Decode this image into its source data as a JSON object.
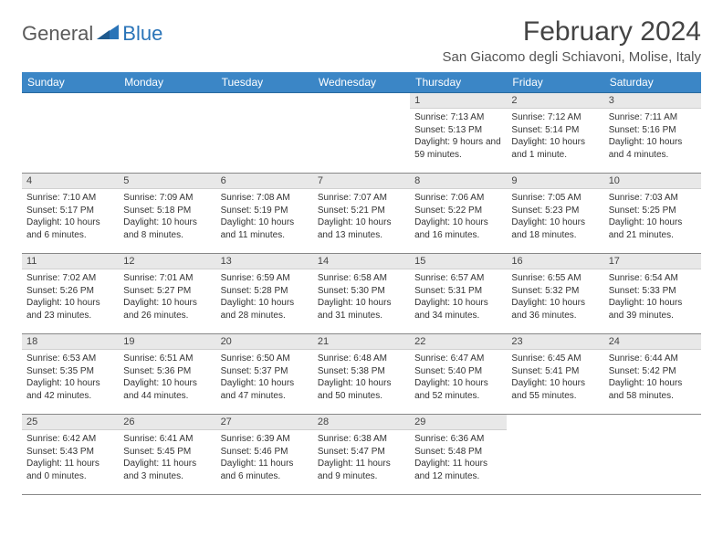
{
  "logo": {
    "general": "General",
    "blue": "Blue"
  },
  "title": "February 2024",
  "location": "San Giacomo degli Schiavoni, Molise, Italy",
  "colors": {
    "header_bg": "#3b86c6",
    "header_text": "#ffffff",
    "daynum_bg": "#e8e8e8",
    "border": "#888888",
    "logo_gray": "#5a5a5a",
    "logo_blue": "#2a74b8"
  },
  "weekdays": [
    "Sunday",
    "Monday",
    "Tuesday",
    "Wednesday",
    "Thursday",
    "Friday",
    "Saturday"
  ],
  "grid": [
    [
      null,
      null,
      null,
      null,
      {
        "n": "1",
        "sr": "7:13 AM",
        "ss": "5:13 PM",
        "dl": "9 hours and 59 minutes."
      },
      {
        "n": "2",
        "sr": "7:12 AM",
        "ss": "5:14 PM",
        "dl": "10 hours and 1 minute."
      },
      {
        "n": "3",
        "sr": "7:11 AM",
        "ss": "5:16 PM",
        "dl": "10 hours and 4 minutes."
      }
    ],
    [
      {
        "n": "4",
        "sr": "7:10 AM",
        "ss": "5:17 PM",
        "dl": "10 hours and 6 minutes."
      },
      {
        "n": "5",
        "sr": "7:09 AM",
        "ss": "5:18 PM",
        "dl": "10 hours and 8 minutes."
      },
      {
        "n": "6",
        "sr": "7:08 AM",
        "ss": "5:19 PM",
        "dl": "10 hours and 11 minutes."
      },
      {
        "n": "7",
        "sr": "7:07 AM",
        "ss": "5:21 PM",
        "dl": "10 hours and 13 minutes."
      },
      {
        "n": "8",
        "sr": "7:06 AM",
        "ss": "5:22 PM",
        "dl": "10 hours and 16 minutes."
      },
      {
        "n": "9",
        "sr": "7:05 AM",
        "ss": "5:23 PM",
        "dl": "10 hours and 18 minutes."
      },
      {
        "n": "10",
        "sr": "7:03 AM",
        "ss": "5:25 PM",
        "dl": "10 hours and 21 minutes."
      }
    ],
    [
      {
        "n": "11",
        "sr": "7:02 AM",
        "ss": "5:26 PM",
        "dl": "10 hours and 23 minutes."
      },
      {
        "n": "12",
        "sr": "7:01 AM",
        "ss": "5:27 PM",
        "dl": "10 hours and 26 minutes."
      },
      {
        "n": "13",
        "sr": "6:59 AM",
        "ss": "5:28 PM",
        "dl": "10 hours and 28 minutes."
      },
      {
        "n": "14",
        "sr": "6:58 AM",
        "ss": "5:30 PM",
        "dl": "10 hours and 31 minutes."
      },
      {
        "n": "15",
        "sr": "6:57 AM",
        "ss": "5:31 PM",
        "dl": "10 hours and 34 minutes."
      },
      {
        "n": "16",
        "sr": "6:55 AM",
        "ss": "5:32 PM",
        "dl": "10 hours and 36 minutes."
      },
      {
        "n": "17",
        "sr": "6:54 AM",
        "ss": "5:33 PM",
        "dl": "10 hours and 39 minutes."
      }
    ],
    [
      {
        "n": "18",
        "sr": "6:53 AM",
        "ss": "5:35 PM",
        "dl": "10 hours and 42 minutes."
      },
      {
        "n": "19",
        "sr": "6:51 AM",
        "ss": "5:36 PM",
        "dl": "10 hours and 44 minutes."
      },
      {
        "n": "20",
        "sr": "6:50 AM",
        "ss": "5:37 PM",
        "dl": "10 hours and 47 minutes."
      },
      {
        "n": "21",
        "sr": "6:48 AM",
        "ss": "5:38 PM",
        "dl": "10 hours and 50 minutes."
      },
      {
        "n": "22",
        "sr": "6:47 AM",
        "ss": "5:40 PM",
        "dl": "10 hours and 52 minutes."
      },
      {
        "n": "23",
        "sr": "6:45 AM",
        "ss": "5:41 PM",
        "dl": "10 hours and 55 minutes."
      },
      {
        "n": "24",
        "sr": "6:44 AM",
        "ss": "5:42 PM",
        "dl": "10 hours and 58 minutes."
      }
    ],
    [
      {
        "n": "25",
        "sr": "6:42 AM",
        "ss": "5:43 PM",
        "dl": "11 hours and 0 minutes."
      },
      {
        "n": "26",
        "sr": "6:41 AM",
        "ss": "5:45 PM",
        "dl": "11 hours and 3 minutes."
      },
      {
        "n": "27",
        "sr": "6:39 AM",
        "ss": "5:46 PM",
        "dl": "11 hours and 6 minutes."
      },
      {
        "n": "28",
        "sr": "6:38 AM",
        "ss": "5:47 PM",
        "dl": "11 hours and 9 minutes."
      },
      {
        "n": "29",
        "sr": "6:36 AM",
        "ss": "5:48 PM",
        "dl": "11 hours and 12 minutes."
      },
      null,
      null
    ]
  ],
  "labels": {
    "sunrise": "Sunrise: ",
    "sunset": "Sunset: ",
    "daylight": "Daylight: "
  }
}
